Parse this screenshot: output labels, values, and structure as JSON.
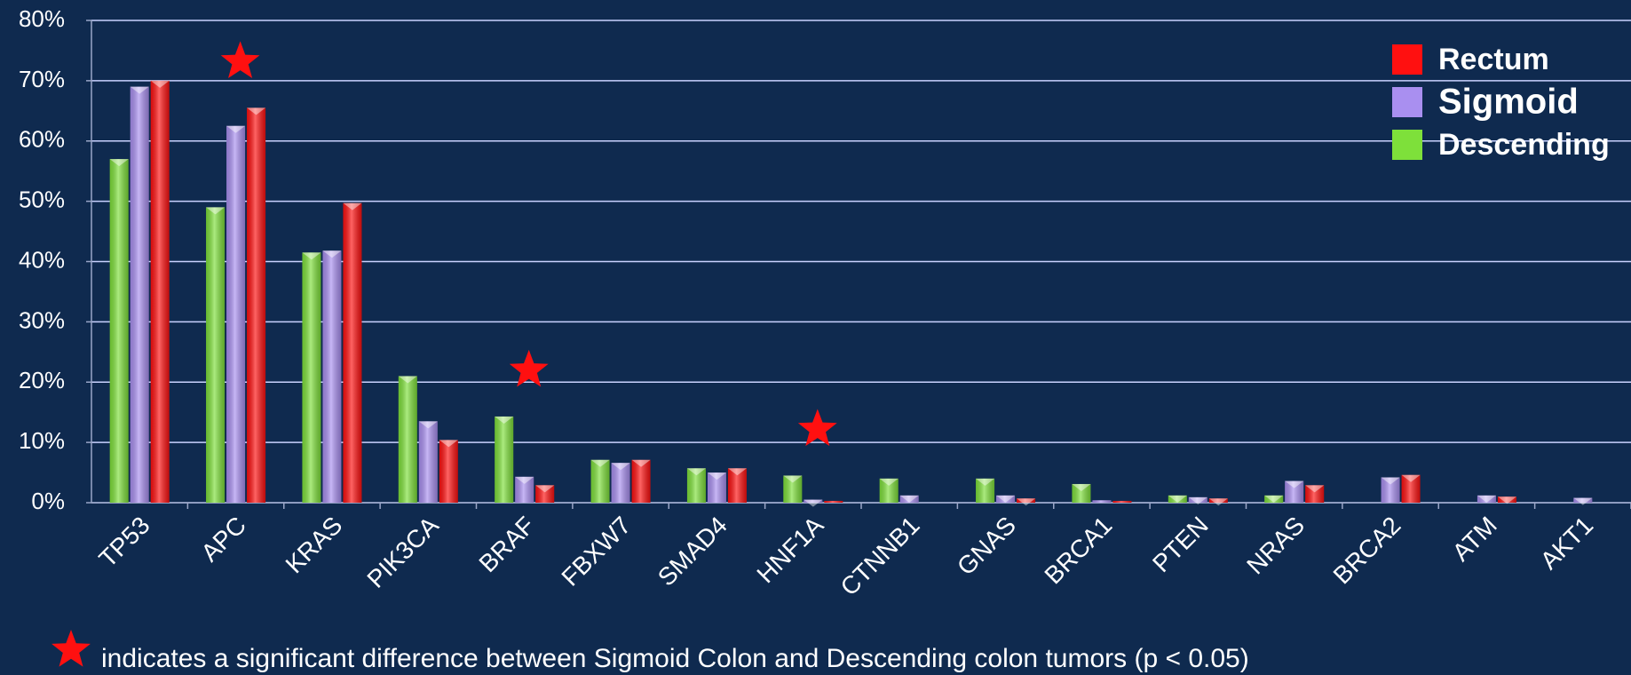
{
  "chart_data": {
    "type": "bar",
    "categories": [
      "TP53",
      "APC",
      "KRAS",
      "PIK3CA",
      "BRAF",
      "FBXW7",
      "SMAD4",
      "HNF1A",
      "CTNNB1",
      "GNAS",
      "BRCA1",
      "PTEN",
      "NRAS",
      "BRCA2",
      "ATM",
      "AKT1"
    ],
    "series": [
      {
        "name": "Descending",
        "color": "#7ee03a",
        "values": [
          57,
          49,
          41.5,
          21,
          14.3,
          7.1,
          5.7,
          4.5,
          4,
          4,
          3.1,
          1.2,
          1.2,
          0,
          0,
          0
        ]
      },
      {
        "name": "Sigmoid",
        "color": "#a98ff0",
        "values": [
          69,
          62.5,
          41.8,
          13.5,
          4.3,
          6.6,
          5,
          0.5,
          1.2,
          1.2,
          0.4,
          0.9,
          3.6,
          4.2,
          1.2,
          0.8
        ]
      },
      {
        "name": "Rectum",
        "color": "#ff1010",
        "values": [
          70,
          65.5,
          49.7,
          10.4,
          2.9,
          7.1,
          5.7,
          0.3,
          0,
          0.7,
          0.3,
          0.7,
          2.9,
          4.6,
          1,
          0
        ]
      }
    ],
    "ylim": [
      0,
      80
    ],
    "yticks": [
      {
        "value": 0,
        "label": "0%"
      },
      {
        "value": 10,
        "label": "10%"
      },
      {
        "value": 20,
        "label": "20%"
      },
      {
        "value": 30,
        "label": "30%"
      },
      {
        "value": 40,
        "label": "40%"
      },
      {
        "value": 50,
        "label": "50%"
      },
      {
        "value": 60,
        "label": "60%"
      },
      {
        "value": 70,
        "label": "70%"
      },
      {
        "value": 80,
        "label": "80%"
      }
    ],
    "grid": true,
    "legend": "top-right",
    "significant": [
      "APC",
      "BRAF",
      "HNF1A"
    ],
    "star_color": "#ff1010",
    "annotation": "indicates a significant difference between Sigmoid Colon and Descending colon tumors (p < 0.05)"
  }
}
